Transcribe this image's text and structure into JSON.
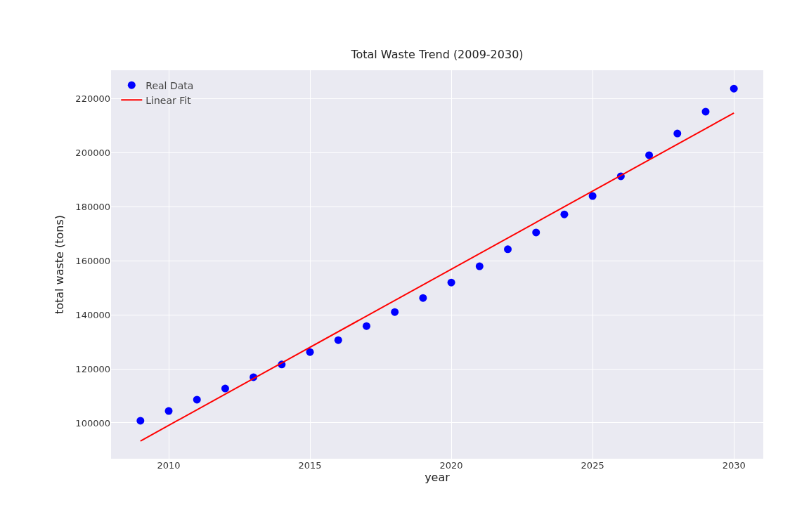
{
  "chart_data": {
    "type": "scatter",
    "title": "Total Waste Trend (2009-2030)",
    "xlabel": "year",
    "ylabel": "total waste (tons)",
    "x": [
      2009,
      2010,
      2011,
      2012,
      2013,
      2014,
      2015,
      2016,
      2017,
      2018,
      2019,
      2020,
      2021,
      2022,
      2023,
      2024,
      2025,
      2026,
      2027,
      2028,
      2029,
      2030
    ],
    "series": [
      {
        "name": "Real Data",
        "color": "#0000ff",
        "marker": "circle",
        "values": [
          100800,
          104400,
          108600,
          112700,
          116900,
          121600,
          126200,
          130600,
          135800,
          141000,
          146200,
          151900,
          157900,
          164200,
          170400,
          177100,
          183900,
          191200,
          199000,
          207000,
          215100,
          223600
        ]
      },
      {
        "name": "Linear Fit",
        "type": "line",
        "color": "#ff0000",
        "line_style": "solid",
        "x": [
          2009,
          2030
        ],
        "values": [
          93300,
          214600
        ]
      }
    ],
    "xlim": [
      2007.96,
      2031.04
    ],
    "xticks": [
      2010,
      2015,
      2020,
      2025,
      2030
    ],
    "ylim": [
      86750,
      230400
    ],
    "yticks": [
      100000,
      120000,
      140000,
      160000,
      180000,
      200000,
      220000
    ],
    "grid": true,
    "legend": "top left"
  }
}
